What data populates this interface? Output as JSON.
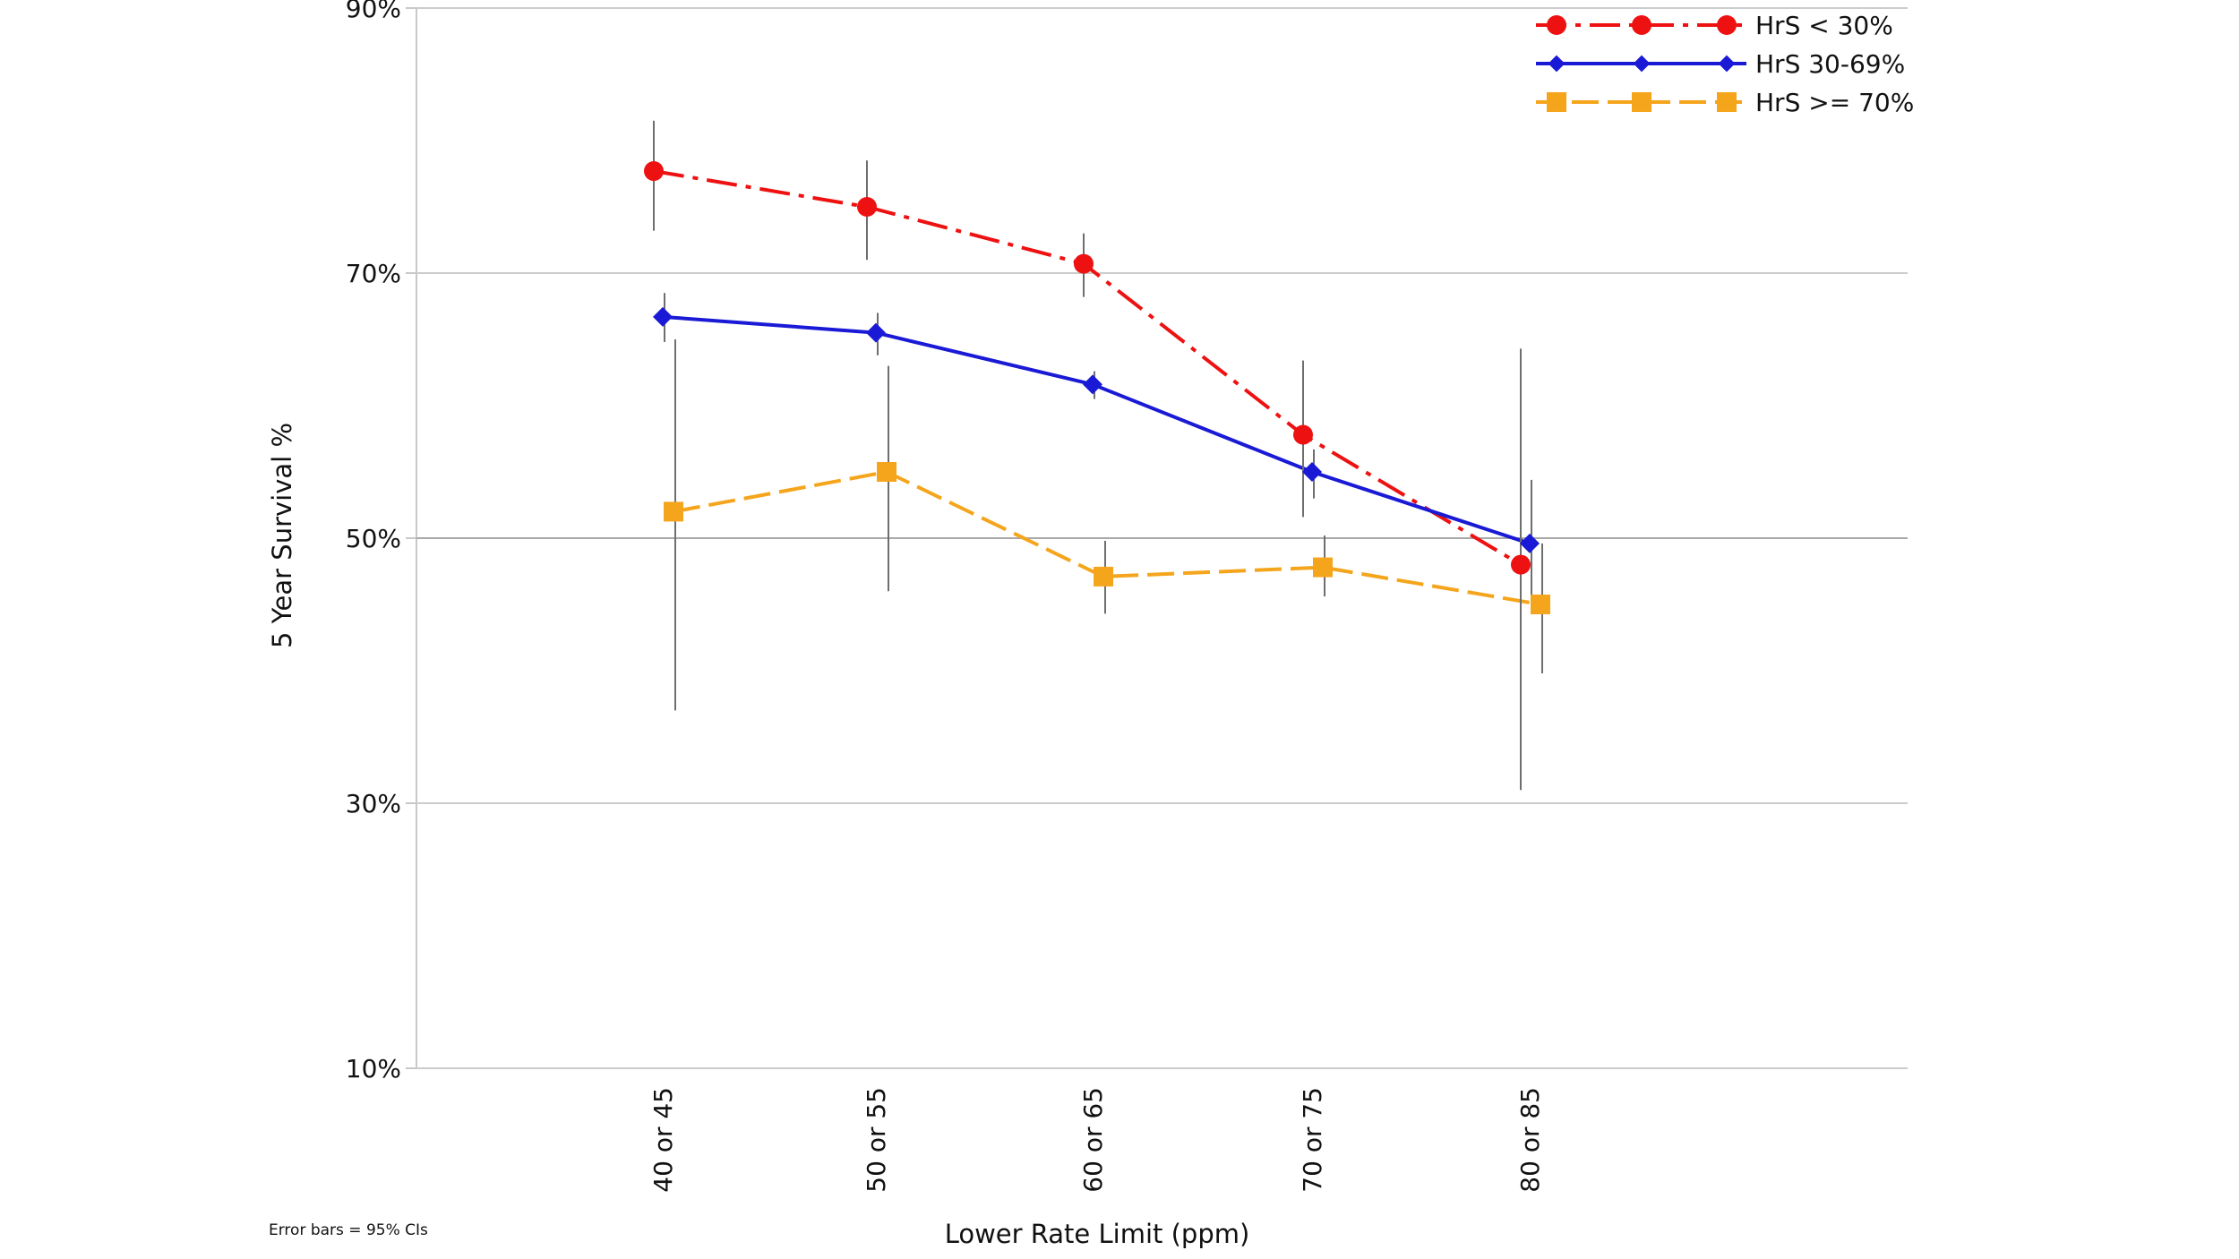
{
  "chart_data": {
    "type": "line",
    "categories": [
      "40 or 45",
      "50 or 55",
      "60 or 65",
      "70 or 75",
      "80 or 85"
    ],
    "xlabel": "Lower Rate Limit (ppm)",
    "ylabel": "5 Year Survival %",
    "ylim": [
      10,
      90
    ],
    "yticks": [
      10,
      30,
      50,
      70,
      90
    ],
    "ytick_labels": [
      "10%",
      "30%",
      "50%",
      "70%",
      "90%"
    ],
    "grid": "horizontal",
    "legend_position": "top-right",
    "note": "Error bars = 95% CIs",
    "series": [
      {
        "name": "HrS < 30%",
        "color": "#ee1111",
        "line_style": "dash-dot",
        "marker": "circle",
        "values": [
          77.7,
          75.0,
          70.7,
          57.8,
          48.0
        ],
        "ci_low": [
          73.2,
          71.0,
          68.2,
          51.6,
          31.0
        ],
        "ci_high": [
          81.5,
          78.5,
          73.0,
          63.4,
          64.3
        ]
      },
      {
        "name": "HrS 30-69%",
        "color": "#1a1ad6",
        "line_style": "solid",
        "marker": "diamond",
        "values": [
          66.7,
          65.5,
          61.6,
          55.0,
          49.6
        ],
        "ci_low": [
          64.8,
          63.8,
          60.5,
          53.0,
          44.5
        ],
        "ci_high": [
          68.5,
          67.0,
          62.6,
          56.7,
          54.4
        ]
      },
      {
        "name": "HrS >= 70%",
        "color": "#f5a51c",
        "line_style": "long-dash",
        "marker": "square",
        "values": [
          52.0,
          55.0,
          47.1,
          47.8,
          45.0
        ],
        "ci_low": [
          37.0,
          46.0,
          44.3,
          45.6,
          39.8
        ],
        "ci_high": [
          65.0,
          63.0,
          49.8,
          50.2,
          49.6
        ]
      }
    ]
  }
}
